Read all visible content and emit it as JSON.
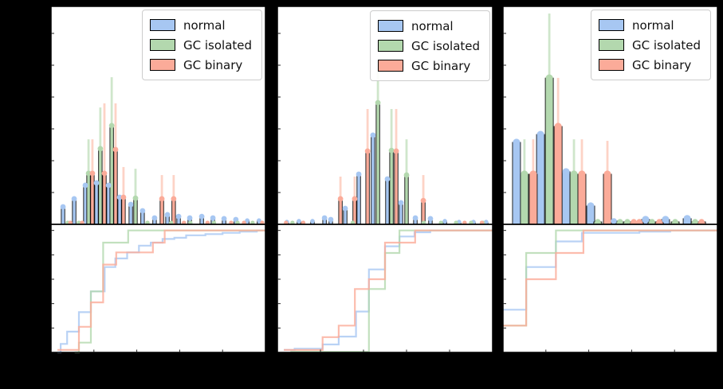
{
  "figure": {
    "background": "#000000",
    "panel_background": "#ffffff",
    "spine_color": "#000000"
  },
  "legend": {
    "items": [
      {
        "label": "normal",
        "series": "normal"
      },
      {
        "label": "GC isolated",
        "series": "gc_isolated"
      },
      {
        "label": "GC binary",
        "series": "gc_binary"
      }
    ]
  },
  "series": {
    "normal": {
      "color": "#a7c7f2",
      "err_color": "#d2e1f8"
    },
    "gc_isolated": {
      "color": "#b3d8ae",
      "err_color": "#cfe6cb"
    },
    "gc_binary": {
      "color": "#fbab99",
      "err_color": "#fdd3c6"
    }
  },
  "chart_data": {
    "type": "bar",
    "subplot_types": [
      "histogram_with_errorbars",
      "cdf_step"
    ],
    "axes": {
      "hist_ylim": [
        0,
        1
      ],
      "cdf_ylim": [
        0,
        1.05
      ],
      "x_range": [
        0,
        1
      ],
      "tick_labels_visible": false,
      "grid": false,
      "legend_position": "upper right"
    },
    "panels": [
      {
        "name": "panel-1",
        "hist": {
          "normal": [
            [
              0.056,
              0.08
            ],
            [
              0.108,
              0.117
            ],
            [
              0.16,
              0.179
            ],
            [
              0.212,
              0.19
            ],
            [
              0.268,
              0.179
            ],
            [
              0.32,
              0.124
            ],
            [
              0.372,
              0.091
            ],
            [
              0.427,
              0.062
            ],
            [
              0.483,
              0.029
            ],
            [
              0.543,
              0.044
            ],
            [
              0.595,
              0.036
            ],
            [
              0.647,
              0.029
            ],
            [
              0.703,
              0.036
            ],
            [
              0.755,
              0.029
            ],
            [
              0.807,
              0.026
            ],
            [
              0.862,
              0.022
            ],
            [
              0.915,
              0.018
            ],
            [
              0.97,
              0.018
            ]
          ],
          "gc_isolated": [
            [
              0.078,
              0.007
            ],
            [
              0.13,
              0.007
            ],
            [
              0.175,
              0.234,
              0.39
            ],
            [
              0.23,
              0.347,
              0.536
            ],
            [
              0.283,
              0.453,
              0.675
            ],
            [
              0.394,
              0.12,
              0.255
            ],
            [
              0.45,
              0.007
            ],
            [
              0.56,
              0.007
            ],
            [
              0.65,
              0.007
            ],
            [
              0.76,
              0.007
            ],
            [
              0.87,
              0.007
            ],
            [
              0.94,
              0.007
            ]
          ],
          "gc_binary": [
            [
              0.09,
              0.007
            ],
            [
              0.145,
              0.007
            ],
            [
              0.193,
              0.234,
              0.39
            ],
            [
              0.249,
              0.234,
              0.555
            ],
            [
              0.301,
              0.343,
              0.555
            ],
            [
              0.338,
              0.124,
              0.263
            ],
            [
              0.517,
              0.117,
              0.226
            ],
            [
              0.572,
              0.117,
              0.226
            ],
            [
              0.62,
              0.007
            ],
            [
              0.73,
              0.007
            ],
            [
              0.84,
              0.007
            ],
            [
              0.9,
              0.007
            ],
            [
              0.985,
              0.007
            ]
          ]
        },
        "cdf": {
          "normal": [
            [
              0.03,
              0.0
            ],
            [
              0.045,
              0.07
            ],
            [
              0.075,
              0.17
            ],
            [
              0.13,
              0.33
            ],
            [
              0.186,
              0.5
            ],
            [
              0.25,
              0.7
            ],
            [
              0.3,
              0.77
            ],
            [
              0.355,
              0.82
            ],
            [
              0.41,
              0.875
            ],
            [
              0.465,
              0.9
            ],
            [
              0.52,
              0.93
            ],
            [
              0.575,
              0.94
            ],
            [
              0.63,
              0.96
            ],
            [
              0.72,
              0.97
            ],
            [
              0.8,
              0.98
            ],
            [
              0.88,
              0.99
            ],
            [
              0.96,
              1.0
            ]
          ],
          "gc_isolated": [
            [
              0.11,
              0.0
            ],
            [
              0.13,
              0.08
            ],
            [
              0.186,
              0.5
            ],
            [
              0.243,
              0.9
            ],
            [
              0.36,
              1.0
            ]
          ],
          "gc_binary": [
            [
              0.03,
              0.02
            ],
            [
              0.13,
              0.21
            ],
            [
              0.186,
              0.41
            ],
            [
              0.243,
              0.72
            ],
            [
              0.304,
              0.82
            ],
            [
              0.475,
              0.9
            ],
            [
              0.53,
              1.0
            ]
          ]
        }
      },
      {
        "name": "panel-2",
        "hist": {
          "normal": [
            [
              0.044,
              0.011
            ],
            [
              0.1,
              0.015
            ],
            [
              0.163,
              0.015
            ],
            [
              0.219,
              0.029
            ],
            [
              0.248,
              0.022
            ],
            [
              0.315,
              0.073
            ],
            [
              0.378,
              0.23
            ],
            [
              0.444,
              0.409
            ],
            [
              0.511,
              0.208
            ],
            [
              0.574,
              0.099
            ],
            [
              0.641,
              0.029
            ],
            [
              0.711,
              0.026
            ],
            [
              0.778,
              0.015
            ],
            [
              0.844,
              0.011
            ],
            [
              0.911,
              0.011
            ],
            [
              0.97,
              0.011
            ]
          ],
          "gc_isolated": [
            [
              0.07,
              0.007
            ],
            [
              0.35,
              0.007
            ],
            [
              0.467,
              0.558,
              0.7
            ],
            [
              0.53,
              0.339,
              0.529
            ],
            [
              0.6,
              0.226,
              0.39
            ],
            [
              0.68,
              0.007
            ],
            [
              0.76,
              0.007
            ],
            [
              0.83,
              0.007
            ],
            [
              0.9,
              0.007
            ],
            [
              0.955,
              0.007
            ]
          ],
          "gc_binary": [
            [
              0.04,
              0.007
            ],
            [
              0.12,
              0.007
            ],
            [
              0.293,
              0.117,
              0.219
            ],
            [
              0.359,
              0.117,
              0.219
            ],
            [
              0.419,
              0.336,
              0.529
            ],
            [
              0.552,
              0.336,
              0.529
            ],
            [
              0.678,
              0.109,
              0.226
            ],
            [
              0.87,
              0.007
            ],
            [
              0.95,
              0.007
            ]
          ]
        },
        "cdf": {
          "normal": [
            [
              0.03,
              0.02
            ],
            [
              0.08,
              0.03
            ],
            [
              0.21,
              0.065
            ],
            [
              0.285,
              0.13
            ],
            [
              0.365,
              0.335
            ],
            [
              0.425,
              0.68
            ],
            [
              0.5,
              0.87
            ],
            [
              0.567,
              0.95
            ],
            [
              0.637,
              0.985
            ],
            [
              0.71,
              1.0
            ]
          ],
          "gc_isolated": [
            [
              0.06,
              0.005
            ],
            [
              0.425,
              0.52
            ],
            [
              0.5,
              0.815
            ],
            [
              0.567,
              1.0
            ]
          ],
          "gc_binary": [
            [
              0.03,
              0.02
            ],
            [
              0.21,
              0.125
            ],
            [
              0.285,
              0.22
            ],
            [
              0.36,
              0.52
            ],
            [
              0.425,
              0.6
            ],
            [
              0.5,
              0.9
            ],
            [
              0.64,
              1.0
            ]
          ]
        }
      },
      {
        "name": "panel-3",
        "hist": {
          "normal": [
            [
              0.063,
              0.376
            ],
            [
              0.175,
              0.412
            ],
            [
              0.294,
              0.241
            ],
            [
              0.409,
              0.084
            ],
            [
              0.517,
              0.015
            ],
            [
              0.665,
              0.022
            ],
            [
              0.758,
              0.022
            ],
            [
              0.859,
              0.026
            ]
          ],
          "gc_isolated": [
            [
              0.1,
              0.23,
              0.39
            ],
            [
              0.216,
              0.671,
              0.967
            ],
            [
              0.331,
              0.23,
              0.39
            ],
            [
              0.442,
              0.011
            ],
            [
              0.546,
              0.011
            ],
            [
              0.58,
              0.011
            ],
            [
              0.695,
              0.011
            ],
            [
              0.803,
              0.011
            ],
            [
              0.896,
              0.011
            ]
          ],
          "gc_binary": [
            [
              0.141,
              0.23,
              0.39
            ],
            [
              0.257,
              0.449,
              0.672
            ],
            [
              0.368,
              0.23,
              0.39
            ],
            [
              0.487,
              0.23,
              0.383
            ],
            [
              0.61,
              0.011
            ],
            [
              0.636,
              0.011
            ],
            [
              0.729,
              0.011
            ],
            [
              0.926,
              0.011
            ]
          ]
        },
        "cdf": {
          "normal": [
            [
              0.0,
              0.35
            ],
            [
              0.108,
              0.7
            ],
            [
              0.247,
              0.91
            ],
            [
              0.368,
              0.98
            ],
            [
              0.636,
              0.99
            ],
            [
              0.78,
              1.0
            ]
          ],
          "gc_isolated": [
            [
              0.0,
              0.22
            ],
            [
              0.108,
              0.815
            ],
            [
              0.247,
              1.0
            ]
          ],
          "gc_binary": [
            [
              0.0,
              0.22
            ],
            [
              0.108,
              0.6
            ],
            [
              0.247,
              0.815
            ],
            [
              0.375,
              1.0
            ]
          ]
        }
      }
    ]
  }
}
